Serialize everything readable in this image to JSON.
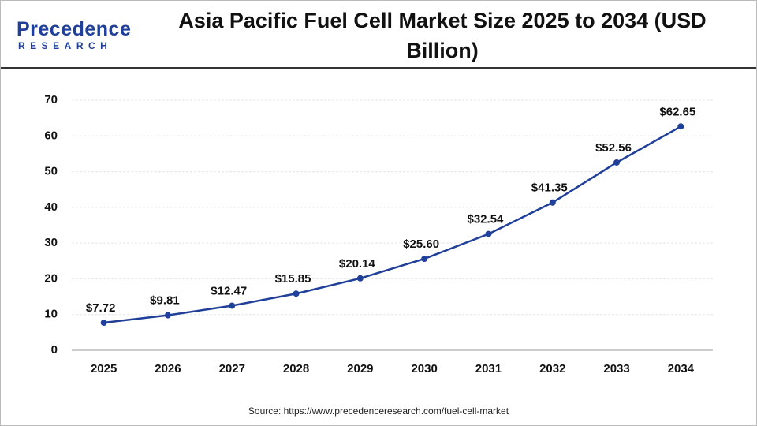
{
  "logo": {
    "name": "Precedence",
    "tagline": "RESEARCH"
  },
  "chart_data": {
    "type": "line",
    "title": "Asia Pacific Fuel Cell Market Size 2025 to 2034 (USD Billion)",
    "categories": [
      "2025",
      "2026",
      "2027",
      "2028",
      "2029",
      "2030",
      "2031",
      "2032",
      "2033",
      "2034"
    ],
    "values": [
      7.72,
      9.81,
      12.47,
      15.85,
      20.14,
      25.6,
      32.54,
      41.35,
      52.56,
      62.65
    ],
    "value_labels": [
      "$7.72",
      "$9.81",
      "$12.47",
      "$15.85",
      "$20.14",
      "$25.60",
      "$32.54",
      "$41.35",
      "$52.56",
      "$62.65"
    ],
    "color": "#1f3f99",
    "ylim": [
      0,
      70
    ],
    "yticks": [
      0,
      10,
      20,
      30,
      40,
      50,
      60,
      70
    ],
    "grid": true,
    "source": "Source: https://www.precedenceresearch.com/fuel-cell-market"
  }
}
